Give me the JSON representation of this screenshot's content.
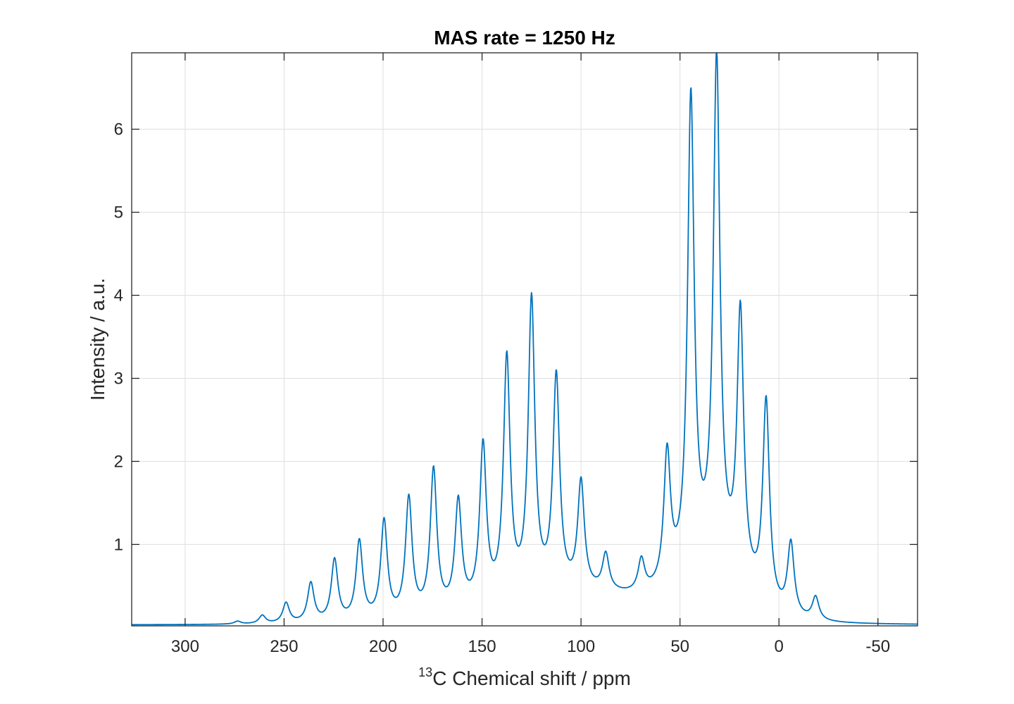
{
  "chart_data": {
    "type": "line",
    "title": "MAS rate = 1250 Hz",
    "xlabel_sup": "13",
    "xlabel_main": "C Chemical shift / ppm",
    "ylabel": "Intensity / a.u.",
    "xlim": [
      327,
      -70
    ],
    "ylim": [
      0.02,
      6.92
    ],
    "x_reversed": true,
    "grid": true,
    "line_color": "#0072bd",
    "xticks": [
      300,
      250,
      200,
      150,
      100,
      50,
      0,
      -50
    ],
    "xtick_labels": [
      "300",
      "250",
      "200",
      "150",
      "100",
      "50",
      "0",
      "-50"
    ],
    "yticks": [
      1,
      2,
      3,
      4,
      5,
      6
    ],
    "ytick_labels": [
      "1",
      "2",
      "3",
      "4",
      "5",
      "6"
    ],
    "baseline": 0.03,
    "broad_components": [
      {
        "center": 100,
        "amplitude": 0.36,
        "width": 62
      },
      {
        "center": 33,
        "amplitude": 0.55,
        "width": 22
      }
    ],
    "peaks": [
      {
        "ppm": 273.5,
        "intensity": 0.06
      },
      {
        "ppm": 261.0,
        "intensity": 0.14
      },
      {
        "ppm": 249.0,
        "intensity": 0.3
      },
      {
        "ppm": 236.5,
        "intensity": 0.55
      },
      {
        "ppm": 224.5,
        "intensity": 0.84
      },
      {
        "ppm": 212.0,
        "intensity": 1.07
      },
      {
        "ppm": 199.5,
        "intensity": 1.32
      },
      {
        "ppm": 187.0,
        "intensity": 1.6
      },
      {
        "ppm": 174.5,
        "intensity": 1.94
      },
      {
        "ppm": 162.0,
        "intensity": 1.56
      },
      {
        "ppm": 149.5,
        "intensity": 2.24
      },
      {
        "ppm": 137.5,
        "intensity": 3.3
      },
      {
        "ppm": 125.0,
        "intensity": 4.0
      },
      {
        "ppm": 112.5,
        "intensity": 3.05
      },
      {
        "ppm": 100.0,
        "intensity": 1.71
      },
      {
        "ppm": 87.5,
        "intensity": 0.74
      },
      {
        "ppm": 69.5,
        "intensity": 0.68
      },
      {
        "ppm": 56.5,
        "intensity": 2.09
      },
      {
        "ppm": 44.5,
        "intensity": 6.45
      },
      {
        "ppm": 31.5,
        "intensity": 6.9
      },
      {
        "ppm": 19.5,
        "intensity": 3.85
      },
      {
        "ppm": 6.5,
        "intensity": 2.78
      },
      {
        "ppm": -6.0,
        "intensity": 1.05
      },
      {
        "ppm": -18.5,
        "intensity": 0.37
      }
    ]
  }
}
